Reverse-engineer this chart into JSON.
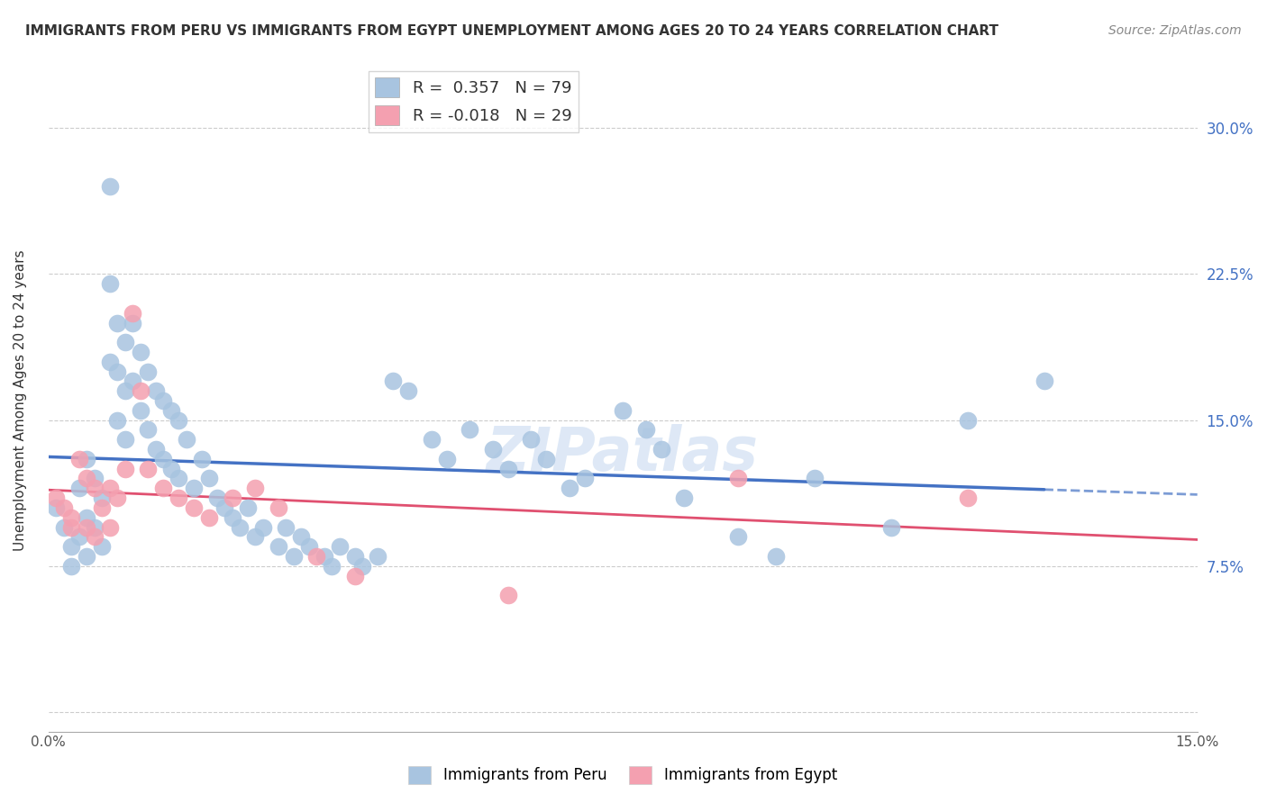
{
  "title": "IMMIGRANTS FROM PERU VS IMMIGRANTS FROM EGYPT UNEMPLOYMENT AMONG AGES 20 TO 24 YEARS CORRELATION CHART",
  "source": "Source: ZipAtlas.com",
  "ylabel": "Unemployment Among Ages 20 to 24 years",
  "xlim": [
    0.0,
    0.15
  ],
  "ylim": [
    -0.01,
    0.33
  ],
  "xtick_positions": [
    0.0,
    0.025,
    0.05,
    0.075,
    0.1,
    0.125,
    0.15
  ],
  "xtick_labels": [
    "0.0%",
    "",
    "",
    "",
    "",
    "",
    "15.0%"
  ],
  "ytick_positions": [
    0.0,
    0.075,
    0.15,
    0.225,
    0.3
  ],
  "ytick_labels": [
    "",
    "7.5%",
    "15.0%",
    "22.5%",
    "30.0%"
  ],
  "peru_R": 0.357,
  "peru_N": 79,
  "egypt_R": -0.018,
  "egypt_N": 29,
  "peru_color": "#a8c4e0",
  "egypt_color": "#f4a0b0",
  "peru_line_color": "#4472c4",
  "egypt_line_color": "#e05070",
  "grid_color": "#cccccc",
  "watermark": "ZIPatlas",
  "peru_x": [
    0.001,
    0.002,
    0.003,
    0.003,
    0.004,
    0.004,
    0.005,
    0.005,
    0.005,
    0.006,
    0.006,
    0.007,
    0.007,
    0.008,
    0.008,
    0.008,
    0.009,
    0.009,
    0.009,
    0.01,
    0.01,
    0.01,
    0.011,
    0.011,
    0.012,
    0.012,
    0.013,
    0.013,
    0.014,
    0.014,
    0.015,
    0.015,
    0.016,
    0.016,
    0.017,
    0.017,
    0.018,
    0.019,
    0.02,
    0.021,
    0.022,
    0.023,
    0.024,
    0.025,
    0.026,
    0.027,
    0.028,
    0.03,
    0.031,
    0.032,
    0.033,
    0.034,
    0.036,
    0.037,
    0.038,
    0.04,
    0.041,
    0.043,
    0.045,
    0.047,
    0.05,
    0.052,
    0.055,
    0.058,
    0.06,
    0.063,
    0.065,
    0.068,
    0.07,
    0.075,
    0.078,
    0.08,
    0.083,
    0.09,
    0.095,
    0.1,
    0.11,
    0.12,
    0.13
  ],
  "peru_y": [
    0.105,
    0.095,
    0.085,
    0.075,
    0.115,
    0.09,
    0.13,
    0.1,
    0.08,
    0.12,
    0.095,
    0.11,
    0.085,
    0.27,
    0.22,
    0.18,
    0.2,
    0.175,
    0.15,
    0.19,
    0.165,
    0.14,
    0.2,
    0.17,
    0.185,
    0.155,
    0.175,
    0.145,
    0.165,
    0.135,
    0.16,
    0.13,
    0.155,
    0.125,
    0.15,
    0.12,
    0.14,
    0.115,
    0.13,
    0.12,
    0.11,
    0.105,
    0.1,
    0.095,
    0.105,
    0.09,
    0.095,
    0.085,
    0.095,
    0.08,
    0.09,
    0.085,
    0.08,
    0.075,
    0.085,
    0.08,
    0.075,
    0.08,
    0.17,
    0.165,
    0.14,
    0.13,
    0.145,
    0.135,
    0.125,
    0.14,
    0.13,
    0.115,
    0.12,
    0.155,
    0.145,
    0.135,
    0.11,
    0.09,
    0.08,
    0.12,
    0.095,
    0.15,
    0.17
  ],
  "egypt_x": [
    0.001,
    0.002,
    0.003,
    0.003,
    0.004,
    0.005,
    0.005,
    0.006,
    0.006,
    0.007,
    0.008,
    0.008,
    0.009,
    0.01,
    0.011,
    0.012,
    0.013,
    0.015,
    0.017,
    0.019,
    0.021,
    0.024,
    0.027,
    0.03,
    0.035,
    0.04,
    0.06,
    0.09,
    0.12
  ],
  "egypt_y": [
    0.11,
    0.105,
    0.1,
    0.095,
    0.13,
    0.12,
    0.095,
    0.115,
    0.09,
    0.105,
    0.115,
    0.095,
    0.11,
    0.125,
    0.205,
    0.165,
    0.125,
    0.115,
    0.11,
    0.105,
    0.1,
    0.11,
    0.115,
    0.105,
    0.08,
    0.07,
    0.06,
    0.12,
    0.11
  ]
}
